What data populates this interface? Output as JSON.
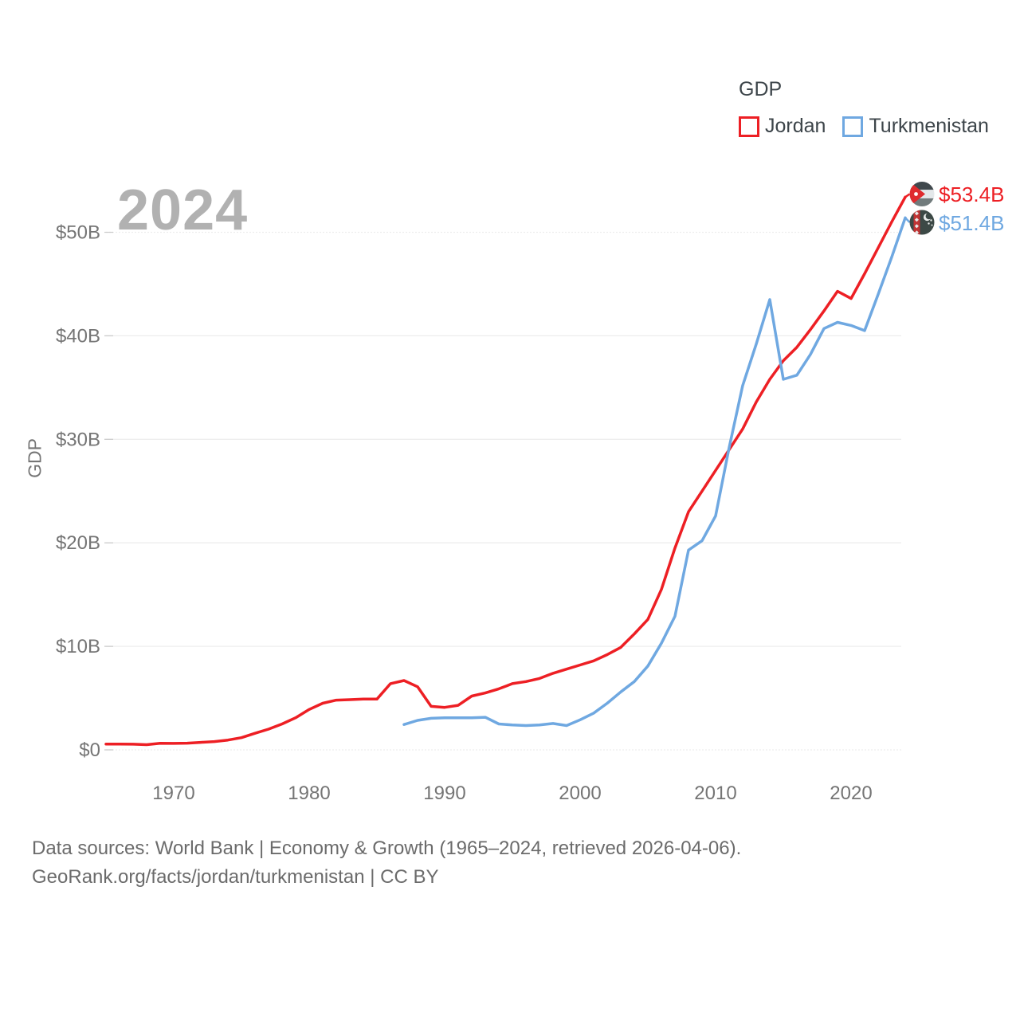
{
  "watermark": "2024",
  "y_axis_title": "GDP",
  "legend": {
    "title": "GDP",
    "items": [
      {
        "label": "Jordan",
        "color": "#ed1f24"
      },
      {
        "label": "Turkmenistan",
        "color": "#6fa8e1"
      }
    ]
  },
  "end_labels": [
    {
      "value": "$53.4B",
      "color": "#ed1f24",
      "flag": "jordan-flag"
    },
    {
      "value": "$51.4B",
      "color": "#6fa8e1",
      "flag": "turkmenistan-flag"
    }
  ],
  "footer": {
    "line1": "Data sources: World Bank | Economy & Growth (1965–2024, retrieved 2026-04-06).",
    "line2": "GeoRank.org/facts/jordan/turkmenistan | CC BY"
  },
  "colors": {
    "grid": "#ededed",
    "grid_tick": "#cccccc",
    "tick_text": "#757575",
    "dark_text": "#3d454a",
    "watermark": "#b1b1b1",
    "footer_text": "#6b6b6b"
  },
  "chart_data": {
    "type": "line",
    "title": "GDP",
    "xlabel": "",
    "ylabel": "GDP",
    "xlim": [
      1965,
      2024
    ],
    "ylim": [
      0,
      55
    ],
    "grid": "horizontal",
    "legend_position": "top-right",
    "x_ticks": [
      1970,
      1980,
      1990,
      2000,
      2010,
      2020
    ],
    "y_ticks": [
      {
        "label": "$0",
        "value": 0
      },
      {
        "label": "$10B",
        "value": 10
      },
      {
        "label": "$20B",
        "value": 20
      },
      {
        "label": "$30B",
        "value": 30
      },
      {
        "label": "$40B",
        "value": 40
      },
      {
        "label": "$50B",
        "value": 50
      }
    ],
    "unit": "USD billions",
    "series": [
      {
        "name": "Jordan",
        "color": "#ed1f24",
        "start_year": 1965,
        "end_value_label": "$53.4B",
        "values": [
          0.56,
          0.56,
          0.55,
          0.5,
          0.64,
          0.62,
          0.65,
          0.72,
          0.8,
          0.95,
          1.18,
          1.6,
          2.0,
          2.5,
          3.1,
          3.9,
          4.5,
          4.8,
          4.85,
          4.9,
          4.9,
          6.4,
          6.7,
          6.1,
          4.2,
          4.1,
          4.3,
          5.2,
          5.5,
          5.9,
          6.4,
          6.6,
          6.9,
          7.4,
          7.8,
          8.2,
          8.6,
          9.2,
          9.9,
          11.2,
          12.6,
          15.5,
          19.5,
          23.0,
          25.0,
          27.0,
          29.0,
          31.0,
          33.6,
          35.8,
          37.6,
          38.9,
          40.6,
          42.4,
          44.3,
          43.6,
          46.0,
          48.5,
          51.0,
          53.4
        ]
      },
      {
        "name": "Turkmenistan",
        "color": "#6fa8e1",
        "start_year": 1987,
        "end_value_label": "$51.4B",
        "values": [
          2.45,
          2.85,
          3.05,
          3.1,
          3.1,
          3.1,
          3.15,
          2.5,
          2.4,
          2.35,
          2.4,
          2.55,
          2.35,
          2.9,
          3.55,
          4.5,
          5.6,
          6.6,
          8.1,
          10.3,
          12.9,
          19.3,
          20.2,
          22.6,
          29.2,
          35.2,
          39.2,
          43.5,
          35.8,
          36.2,
          38.2,
          40.7,
          41.3,
          41.0,
          40.5,
          44.0,
          47.6,
          51.4
        ]
      }
    ]
  }
}
